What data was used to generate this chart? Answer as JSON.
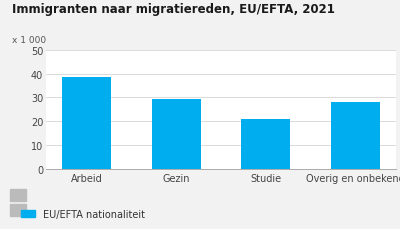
{
  "title": "Immigranten naar migratiereden, EU/EFTA, 2021",
  "ylabel_text": "x 1 000",
  "categories": [
    "Arbeid",
    "Gezin",
    "Studie",
    "Overig en onbekend"
  ],
  "values": [
    38.5,
    29.5,
    21.0,
    28.0
  ],
  "bar_color": "#00AEEF",
  "ylim": [
    0,
    50
  ],
  "yticks": [
    0,
    10,
    20,
    30,
    40,
    50
  ],
  "legend_label": "EU/EFTA nationaliteit",
  "background_color": "#f2f2f2",
  "plot_bg_color": "#ffffff",
  "title_fontsize": 8.5,
  "tick_fontsize": 7.0,
  "legend_fontsize": 7.0,
  "ylabel_fontsize": 6.5
}
